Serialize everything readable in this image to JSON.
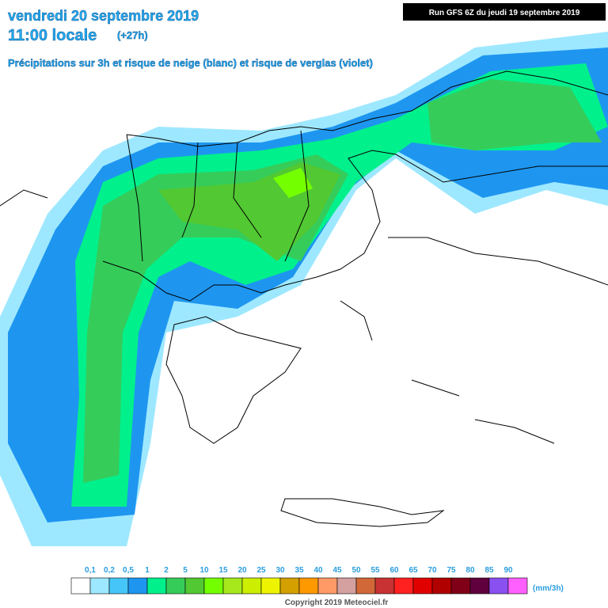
{
  "header": {
    "date": "vendredi 20 septembre 2019",
    "time": "11:00 locale",
    "lead": "(+27h)",
    "subtitle": "Précipitations sur 3h et risque de neige (blanc) et risque de verglas (violet)",
    "run": "Run GFS 6Z du jeudi 19 septembre 2019"
  },
  "legend": {
    "labels": [
      "0,1",
      "0,2",
      "0,5",
      "1",
      "2",
      "5",
      "10",
      "15",
      "20",
      "25",
      "30",
      "35",
      "40",
      "45",
      "50",
      "55",
      "60",
      "65",
      "70",
      "75",
      "80",
      "85",
      "90"
    ],
    "colors": [
      "#ffffff",
      "#9ee8ff",
      "#46c6f8",
      "#1e96f0",
      "#00f08c",
      "#36cc5a",
      "#52c832",
      "#74ff00",
      "#a6e81c",
      "#ccee00",
      "#eef400",
      "#d4a000",
      "#ff9900",
      "#ff9a66",
      "#d4a0a0",
      "#d06838",
      "#c83232",
      "#ff2020",
      "#e00000",
      "#b00000",
      "#800018",
      "#60003c",
      "#8a50f0",
      "#ff60ff"
    ],
    "unit": "(mm/3h)"
  },
  "footer": {
    "copyright": "Copyright 2019 Meteociel.fr"
  }
}
